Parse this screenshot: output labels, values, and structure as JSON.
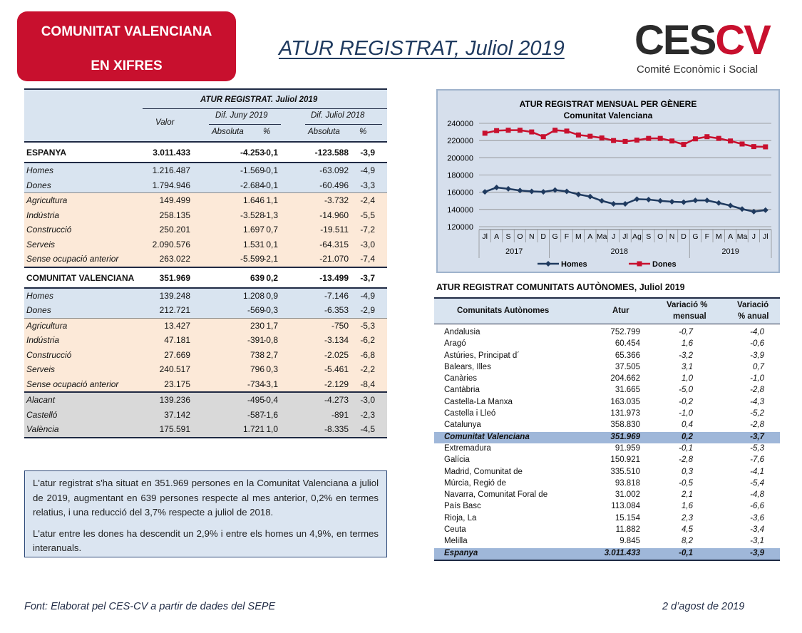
{
  "badge": {
    "line1": "COMUNITAT VALENCIANA",
    "line2": "EN XIFRES"
  },
  "title": "ATUR REGISTRAT, Juliol 2019",
  "logo": {
    "mark_a": "CES",
    "mark_b": "CV",
    "subtitle": "Comité Econòmic i Social"
  },
  "left_table": {
    "header": {
      "title": "ATUR REGISTRAT.  Juliol 2019",
      "valor": "Valor",
      "dif1": "Dif. Juny 2019",
      "dif2": "Dif. Juliol 2018",
      "abs": "Absoluta",
      "pct": "%"
    },
    "rows": [
      {
        "label": "ESPANYA",
        "valor": "3.011.433",
        "abs1": "-4.253",
        "pct1": "-0,1",
        "abs2": "-123.588",
        "pct2": "-3,9"
      },
      {
        "label": "Homes",
        "valor": "1.216.487",
        "abs1": "-1.569",
        "pct1": "-0,1",
        "abs2": "-63.092",
        "pct2": "-4,9"
      },
      {
        "label": "Dones",
        "valor": "1.794.946",
        "abs1": "-2.684",
        "pct1": "-0,1",
        "abs2": "-60.496",
        "pct2": "-3,3"
      },
      {
        "label": "Agricultura",
        "valor": "149.499",
        "abs1": "1.646",
        "pct1": "1,1",
        "abs2": "-3.732",
        "pct2": "-2,4"
      },
      {
        "label": "Indústria",
        "valor": "258.135",
        "abs1": "-3.528",
        "pct1": "-1,3",
        "abs2": "-14.960",
        "pct2": "-5,5"
      },
      {
        "label": "Construcció",
        "valor": "250.201",
        "abs1": "1.697",
        "pct1": "0,7",
        "abs2": "-19.511",
        "pct2": "-7,2"
      },
      {
        "label": "Serveis",
        "valor": "2.090.576",
        "abs1": "1.531",
        "pct1": "0,1",
        "abs2": "-64.315",
        "pct2": "-3,0"
      },
      {
        "label": "Sense ocupació anterior",
        "valor": "263.022",
        "abs1": "-5.599",
        "pct1": "-2,1",
        "abs2": "-21.070",
        "pct2": "-7,4"
      },
      {
        "label": "COMUNITAT VALENCIANA",
        "valor": "351.969",
        "abs1": "639",
        "pct1": "0,2",
        "abs2": "-13.499",
        "pct2": "-3,7"
      },
      {
        "label": "Homes",
        "valor": "139.248",
        "abs1": "1.208",
        "pct1": "0,9",
        "abs2": "-7.146",
        "pct2": "-4,9"
      },
      {
        "label": "Dones",
        "valor": "212.721",
        "abs1": "-569",
        "pct1": "-0,3",
        "abs2": "-6.353",
        "pct2": "-2,9"
      },
      {
        "label": "Agricultura",
        "valor": "13.427",
        "abs1": "230",
        "pct1": "1,7",
        "abs2": "-750",
        "pct2": "-5,3"
      },
      {
        "label": "Indústria",
        "valor": "47.181",
        "abs1": "-391",
        "pct1": "-0,8",
        "abs2": "-3.134",
        "pct2": "-6,2"
      },
      {
        "label": "Construcció",
        "valor": "27.669",
        "abs1": "738",
        "pct1": "2,7",
        "abs2": "-2.025",
        "pct2": "-6,8"
      },
      {
        "label": "Serveis",
        "valor": "240.517",
        "abs1": "796",
        "pct1": "0,3",
        "abs2": "-5.461",
        "pct2": "-2,2"
      },
      {
        "label": "Sense ocupació anterior",
        "valor": "23.175",
        "abs1": "-734",
        "pct1": "-3,1",
        "abs2": "-2.129",
        "pct2": "-8,4"
      },
      {
        "label": "Alacant",
        "valor": "139.236",
        "abs1": "-495",
        "pct1": "-0,4",
        "abs2": "-4.273",
        "pct2": "-3,0"
      },
      {
        "label": "Castelló",
        "valor": "37.142",
        "abs1": "-587",
        "pct1": "-1,6",
        "abs2": "-891",
        "pct2": "-2,3"
      },
      {
        "label": "València",
        "valor": "175.591",
        "abs1": "1.721",
        "pct1": "1,0",
        "abs2": "-8.335",
        "pct2": "-4,5"
      }
    ]
  },
  "chart_data": {
    "type": "line",
    "title": "ATUR REGISTRAT MENSUAL PER GÈNERE",
    "subtitle": "Comunitat Valenciana",
    "categories": [
      "Jl",
      "A",
      "S",
      "O",
      "N",
      "D",
      "G",
      "F",
      "M",
      "A",
      "Ma",
      "J",
      "Jl",
      "Ag",
      "S",
      "O",
      "N",
      "D",
      "G",
      "F",
      "M",
      "A",
      "Ma",
      "J",
      "Jl"
    ],
    "year_labels": [
      "2017",
      "2018",
      "2019"
    ],
    "y_ticks": [
      "120000",
      "140000",
      "160000",
      "180000",
      "200000",
      "220000",
      "240000"
    ],
    "ylim": [
      120000,
      240000
    ],
    "series": [
      {
        "name": "Homes",
        "color": "#1f3a5f",
        "values": [
          160500,
          165500,
          164000,
          162000,
          161000,
          160500,
          162500,
          161000,
          157500,
          155000,
          150000,
          146500,
          146500,
          152000,
          151500,
          150000,
          149000,
          148500,
          150500,
          150500,
          147500,
          144500,
          140500,
          137500,
          139200
        ]
      },
      {
        "name": "Dones",
        "color": "#c8102e",
        "values": [
          228500,
          231500,
          232000,
          232000,
          230000,
          224500,
          232000,
          231000,
          226500,
          225000,
          223000,
          220000,
          219000,
          220500,
          222500,
          222500,
          219500,
          215500,
          222000,
          224500,
          222500,
          219500,
          216000,
          213000,
          212700
        ]
      }
    ]
  },
  "right_table": {
    "title": "ATUR REGISTRAT COMUNITATS AUTÒNOMES, Juliol 2019",
    "headers": {
      "name": "Comunitats Autònomes",
      "atur": "Atur",
      "mens_1": "Variació %",
      "mens_2": "mensual",
      "anual_1": "Variació",
      "anual_2": "% anual"
    },
    "rows": [
      {
        "name": "Andalusia",
        "atur": "752.799",
        "mens": "-0,7",
        "anual": "-4,0"
      },
      {
        "name": "Aragó",
        "atur": "60.454",
        "mens": "1,6",
        "anual": "-0,6"
      },
      {
        "name": "Astúries, Principat d´",
        "atur": "65.366",
        "mens": "-3,2",
        "anual": "-3,9"
      },
      {
        "name": "Balears, Illes",
        "atur": "37.505",
        "mens": "3,1",
        "anual": "0,7"
      },
      {
        "name": "Canàries",
        "atur": "204.662",
        "mens": "1,0",
        "anual": "-1,0"
      },
      {
        "name": "Cantàbria",
        "atur": "31.665",
        "mens": "-5,0",
        "anual": "-2,8"
      },
      {
        "name": "Castella-La Manxa",
        "atur": "163.035",
        "mens": "-0,2",
        "anual": "-4,3"
      },
      {
        "name": "Castella i Lleó",
        "atur": "131.973",
        "mens": "-1,0",
        "anual": "-5,2"
      },
      {
        "name": "Catalunya",
        "atur": "358.830",
        "mens": "0,4",
        "anual": "-2,8"
      },
      {
        "name": "Comunitat Valenciana",
        "atur": "351.969",
        "mens": "0,2",
        "anual": "-3,7"
      },
      {
        "name": "Extremadura",
        "atur": "91.959",
        "mens": "-0,1",
        "anual": "-5,3"
      },
      {
        "name": "Galícia",
        "atur": "150.921",
        "mens": "-2,8",
        "anual": "-7,6"
      },
      {
        "name": "Madrid, Comunitat de",
        "atur": "335.510",
        "mens": "0,3",
        "anual": "-4,1"
      },
      {
        "name": "Múrcia, Regió de",
        "atur": "93.818",
        "mens": "-0,5",
        "anual": "-5,4"
      },
      {
        "name": "Navarra, Comunitat Foral de",
        "atur": "31.002",
        "mens": "2,1",
        "anual": "-4,8"
      },
      {
        "name": "País Basc",
        "atur": "113.084",
        "mens": "1,6",
        "anual": "-6,6"
      },
      {
        "name": "Rioja, La",
        "atur": "15.154",
        "mens": "2,3",
        "anual": "-3,6"
      },
      {
        "name": "Ceuta",
        "atur": "11.882",
        "mens": "4,5",
        "anual": "-3,4"
      },
      {
        "name": "Melilla",
        "atur": "9.845",
        "mens": "8,2",
        "anual": "-3,1"
      },
      {
        "name": "Espanya",
        "atur": "3.011.433",
        "mens": "-0,1",
        "anual": "-3,9"
      }
    ]
  },
  "text": {
    "p1": "L'atur registrat s'ha situat en 351.969 persones en la Comunitat Valenciana a juliol de 2019, augmentant en 639 persones respecte al mes anterior, 0,2% en termes relatius, i una reducció del 3,7% respecte a juliol de 2018.",
    "p2": "L'atur entre les dones ha descendit un 2,9% i entre els homes un 4,9%, en termes interanuals."
  },
  "footer": {
    "source": "Font: Elaborat pel CES-CV a partir de dades del SEPE",
    "date": "2 d’agost de 2019"
  }
}
